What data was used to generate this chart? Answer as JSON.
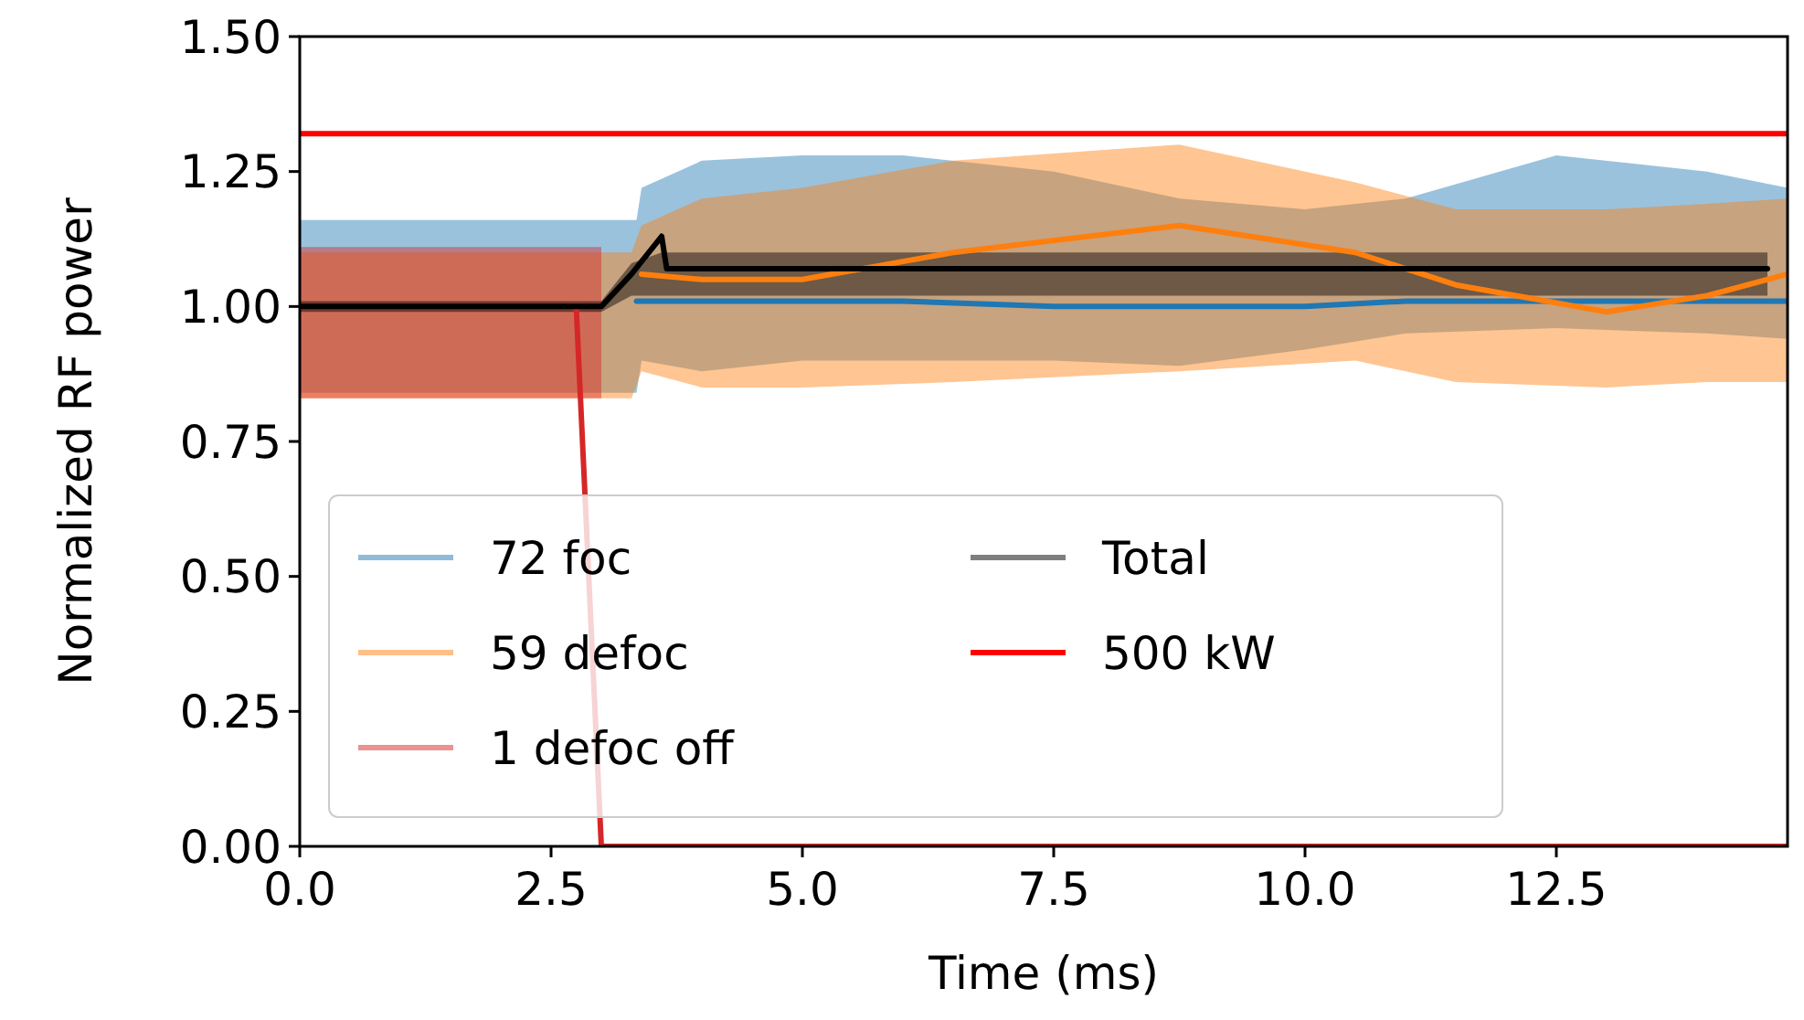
{
  "chart_data": {
    "type": "line",
    "xlabel": "Time (ms)",
    "ylabel": "Normalized RF power",
    "xlim": [
      0,
      14.8
    ],
    "ylim": [
      0,
      1.5
    ],
    "xticks": [
      {
        "value": 0,
        "label": "0.0"
      },
      {
        "value": 2.5,
        "label": "2.5"
      },
      {
        "value": 5,
        "label": "5.0"
      },
      {
        "value": 7.5,
        "label": "7.5"
      },
      {
        "value": 10,
        "label": "10.0"
      },
      {
        "value": 12.5,
        "label": "12.5"
      }
    ],
    "yticks": [
      {
        "value": 0,
        "label": "0.00"
      },
      {
        "value": 0.25,
        "label": "0.25"
      },
      {
        "value": 0.5,
        "label": "0.50"
      },
      {
        "value": 0.75,
        "label": "0.75"
      },
      {
        "value": 1,
        "label": "1.00"
      },
      {
        "value": 1.25,
        "label": "1.25"
      },
      {
        "value": 1.5,
        "label": "1.50"
      }
    ],
    "grid": false,
    "legend": "bottom left",
    "marker": "none",
    "line_style": "solid",
    "series": [
      {
        "name": "72 foc",
        "color": "#1f77b4",
        "x": [
          0,
          3.0,
          3.35,
          3.4,
          4,
          5,
          6,
          7.5,
          8.75,
          10,
          11,
          12.5,
          14,
          14.8
        ],
        "values": [
          null,
          null,
          1.01,
          1.01,
          1.01,
          1.01,
          1.01,
          1.0,
          1.0,
          1.0,
          1.01,
          1.01,
          1.01,
          1.01
        ],
        "lower": [
          0.84,
          0.84,
          0.84,
          0.9,
          0.88,
          0.9,
          0.9,
          0.9,
          0.89,
          0.92,
          0.95,
          0.96,
          0.95,
          0.94
        ],
        "upper": [
          1.16,
          1.16,
          1.16,
          1.22,
          1.27,
          1.28,
          1.28,
          1.25,
          1.2,
          1.18,
          1.2,
          1.28,
          1.25,
          1.22
        ]
      },
      {
        "name": "59 defoc",
        "color": "#ff7f0e",
        "x": [
          0,
          3.0,
          3.3,
          3.4,
          4,
          5,
          6.5,
          8.75,
          10.5,
          11.5,
          13,
          14,
          14.8
        ],
        "values": [
          null,
          null,
          null,
          1.06,
          1.05,
          1.05,
          1.1,
          1.15,
          1.1,
          1.04,
          0.99,
          1.02,
          1.06
        ],
        "lower": [
          0.83,
          0.83,
          0.83,
          0.88,
          0.85,
          0.85,
          0.86,
          0.88,
          0.9,
          0.86,
          0.85,
          0.86,
          0.86
        ],
        "upper": [
          1.1,
          1.1,
          1.1,
          1.15,
          1.2,
          1.22,
          1.27,
          1.3,
          1.23,
          1.18,
          1.18,
          1.19,
          1.2
        ]
      },
      {
        "name": "1 defoc off",
        "color": "#d62728",
        "x": [
          0,
          2.75,
          3.0,
          14.8
        ],
        "values": [
          null,
          1.0,
          0,
          0
        ],
        "lower": [
          0.83,
          0.83,
          0.83,
          null
        ],
        "upper": [
          1.11,
          1.11,
          1.11,
          null
        ]
      },
      {
        "name": "Total",
        "color": "#000000",
        "x": [
          0,
          3.0,
          3.3,
          3.6,
          3.65,
          5,
          7.5,
          10,
          12.5,
          14.6
        ],
        "values": [
          1.0,
          1.0,
          1.06,
          1.13,
          1.07,
          1.07,
          1.07,
          1.07,
          1.07,
          1.07
        ],
        "lower": [
          0.99,
          0.99,
          1.02,
          1.02,
          1.02,
          1.02,
          1.02,
          1.02,
          1.02,
          1.02
        ],
        "upper": [
          1.01,
          1.01,
          1.08,
          1.1,
          1.1,
          1.1,
          1.1,
          1.1,
          1.1,
          1.1
        ]
      },
      {
        "name": "500 kW",
        "color": "#ff0000",
        "x": [
          0,
          14.8
        ],
        "values": [
          1.32,
          1.32
        ]
      }
    ]
  }
}
